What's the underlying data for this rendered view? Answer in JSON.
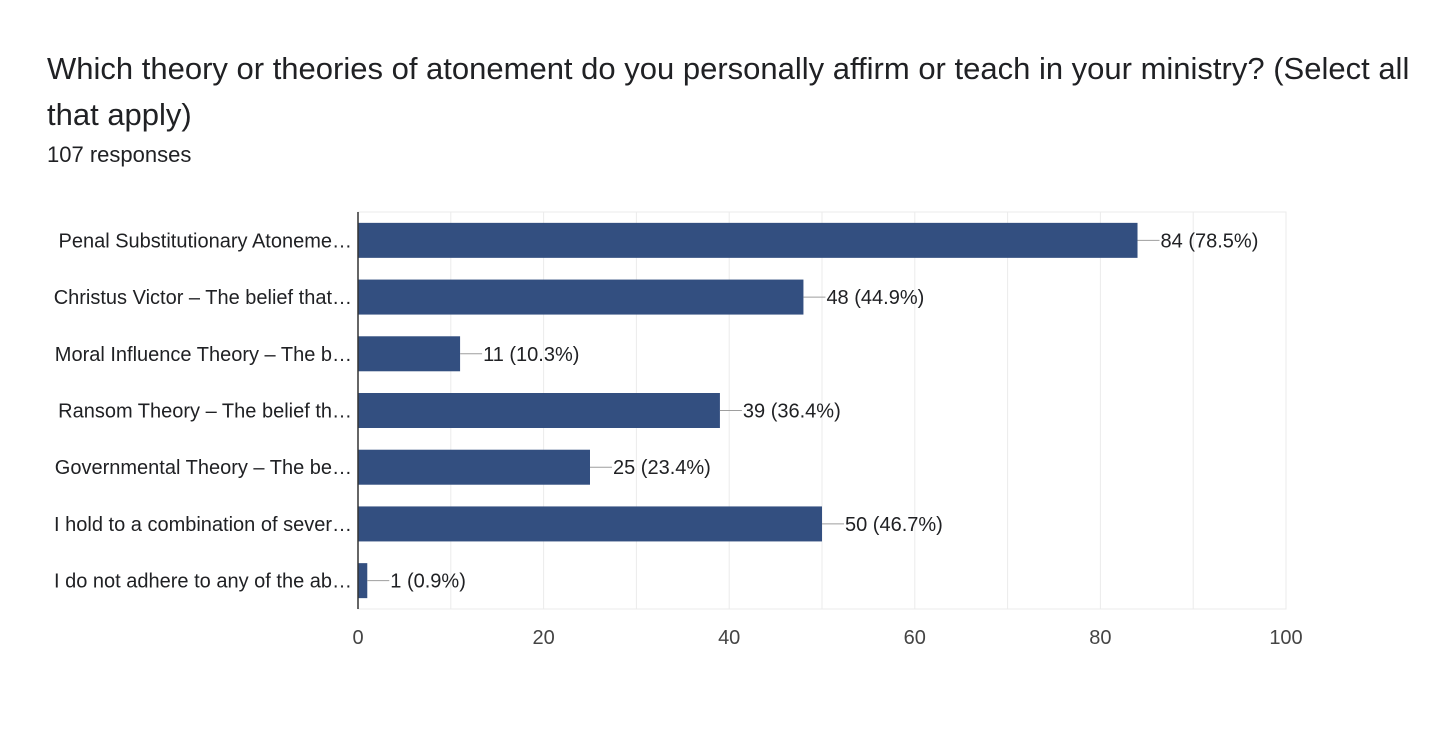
{
  "question": {
    "title": "Which theory or theories of atonement do you personally affirm or teach in your ministry? (Select all that apply)",
    "responses": "107 responses"
  },
  "colors": {
    "bar": "#334f80",
    "grid": "#ebebeb",
    "axis": "#333333",
    "leader": "#9e9e9e",
    "text": "#202124"
  },
  "chart_data": {
    "type": "bar",
    "orientation": "horizontal",
    "categories": [
      "Penal Substitutionary Atoneme…",
      "Christus Victor – The belief that…",
      "Moral Influence Theory – The b…",
      "Ransom Theory – The belief th…",
      "Governmental Theory – The be…",
      "I hold to a combination of sever…",
      "I do not adhere to any of the ab…"
    ],
    "values": [
      84,
      48,
      11,
      39,
      25,
      50,
      1
    ],
    "data_labels": [
      "84 (78.5%)",
      "48 (44.9%)",
      "11 (10.3%)",
      "39 (36.4%)",
      "25 (23.4%)",
      "50 (46.7%)",
      "1 (0.9%)"
    ],
    "xlim": [
      0,
      100
    ],
    "x_ticks": [
      "0",
      "20",
      "40",
      "60",
      "80",
      "100"
    ],
    "grid": true
  }
}
